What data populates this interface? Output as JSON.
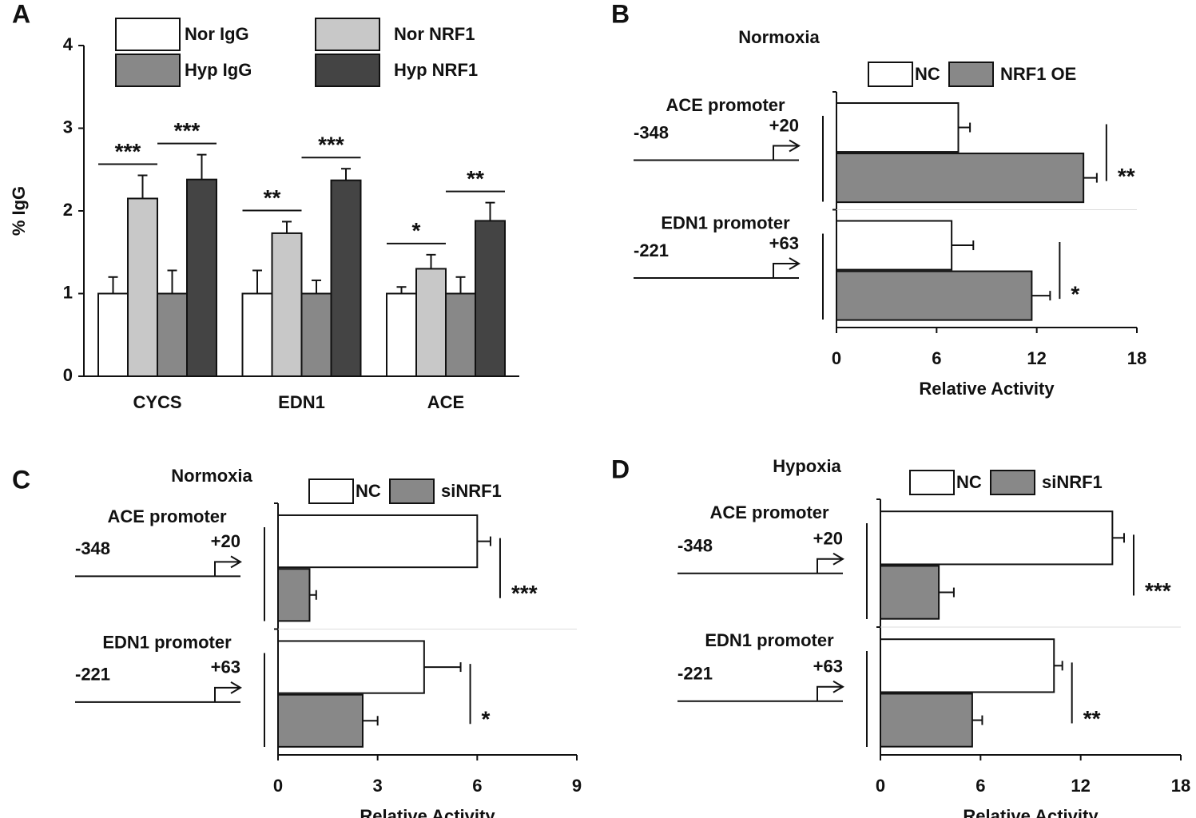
{
  "chart_data": [
    {
      "type": "bar",
      "panel": "A",
      "ylabel": "% IgG",
      "categories": [
        "CYCS",
        "EDN1",
        "ACE"
      ],
      "series": [
        {
          "name": "Nor IgG",
          "color": "#ffffff",
          "values": [
            1,
            1,
            1
          ],
          "errors": [
            0.2,
            0.28,
            0.08
          ]
        },
        {
          "name": "Nor NRF1",
          "color": "#c8c8c8",
          "values": [
            2.15,
            1.73,
            1.3
          ],
          "errors": [
            0.28,
            0.14,
            0.17
          ]
        },
        {
          "name": "Hyp IgG",
          "color": "#888888",
          "values": [
            1,
            1,
            1
          ],
          "errors": [
            0.28,
            0.16,
            0.2
          ]
        },
        {
          "name": "Hyp NRF1",
          "color": "#444444",
          "values": [
            2.38,
            2.37,
            1.88
          ],
          "errors": [
            0.3,
            0.14,
            0.22
          ]
        }
      ],
      "significance": [
        [
          "***",
          "***"
        ],
        [
          "**",
          "***"
        ],
        [
          "*",
          "**"
        ]
      ],
      "ylim": [
        0,
        4
      ],
      "yticks": [
        0,
        1,
        2,
        3,
        4
      ]
    },
    {
      "type": "hbar",
      "panel": "B",
      "title": "Normoxia",
      "xlabel": "Relative Activity",
      "categories": [
        "ACE promoter",
        "EDN1 promoter"
      ],
      "promoters": [
        [
          "-348",
          "+20"
        ],
        [
          "-221",
          "+63"
        ]
      ],
      "series": [
        {
          "name": "NC",
          "color": "#ffffff",
          "values": [
            7.3,
            6.9
          ],
          "errors": [
            0.7,
            1.3
          ]
        },
        {
          "name": "NRF1 OE",
          "color": "#888888",
          "values": [
            14.8,
            11.7
          ],
          "errors": [
            0.8,
            1.1
          ]
        }
      ],
      "significance": [
        "**",
        "*"
      ],
      "xlim": [
        0,
        18
      ],
      "xticks": [
        0,
        6,
        12,
        18
      ]
    },
    {
      "type": "hbar",
      "panel": "C",
      "title": "Normoxia",
      "xlabel": "Relative Activity",
      "categories": [
        "ACE promoter",
        "EDN1 promoter"
      ],
      "promoters": [
        [
          "-348",
          "+20"
        ],
        [
          "-221",
          "+63"
        ]
      ],
      "series": [
        {
          "name": "NC",
          "color": "#ffffff",
          "values": [
            6.0,
            4.4
          ],
          "errors": [
            0.4,
            1.1
          ]
        },
        {
          "name": "siNRF1",
          "color": "#888888",
          "values": [
            0.95,
            2.55
          ],
          "errors": [
            0.2,
            0.45
          ]
        }
      ],
      "significance": [
        "***",
        "*"
      ],
      "xlim": [
        0,
        9
      ],
      "xticks": [
        0,
        3,
        6,
        9
      ]
    },
    {
      "type": "hbar",
      "panel": "D",
      "title": "Hypoxia",
      "xlabel": "Relative Activity",
      "categories": [
        "ACE promoter",
        "EDN1 promoter"
      ],
      "promoters": [
        [
          "-348",
          "+20"
        ],
        [
          "-221",
          "+63"
        ]
      ],
      "series": [
        {
          "name": "NC",
          "color": "#ffffff",
          "values": [
            13.9,
            10.4
          ],
          "errors": [
            0.7,
            0.5
          ]
        },
        {
          "name": "siNRF1",
          "color": "#888888",
          "values": [
            3.5,
            5.5
          ],
          "errors": [
            0.9,
            0.6
          ]
        }
      ],
      "significance": [
        "***",
        "**"
      ],
      "xlim": [
        0,
        18
      ],
      "xticks": [
        0,
        6,
        12,
        18
      ]
    }
  ]
}
